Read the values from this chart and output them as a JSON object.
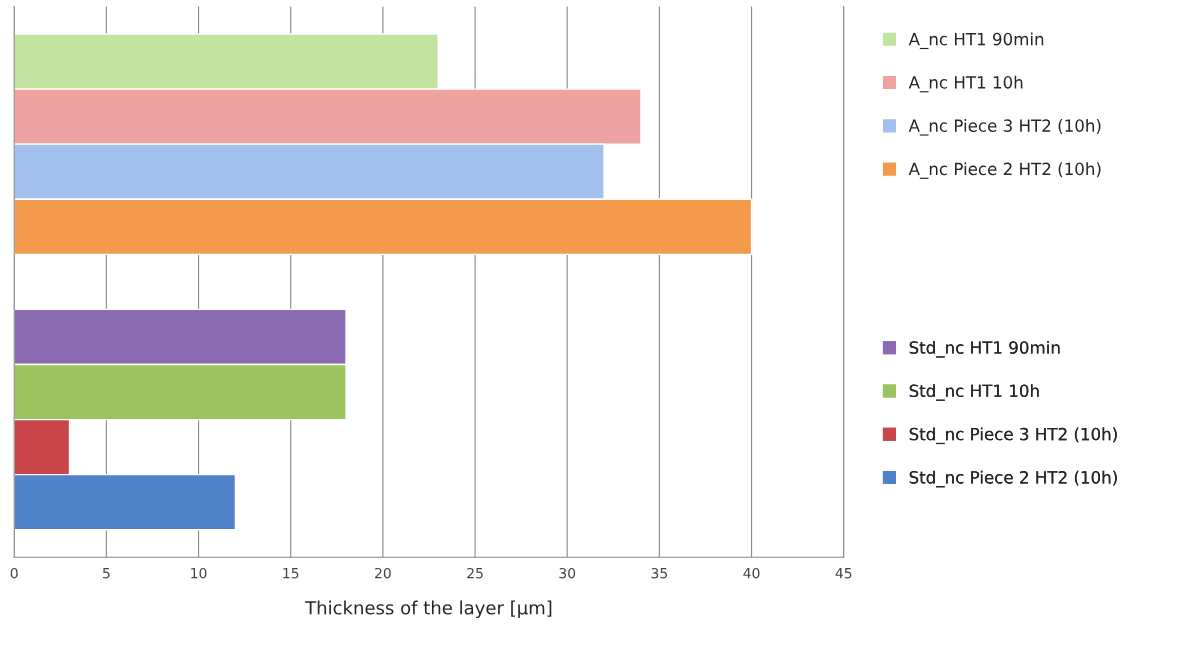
{
  "chart_data": {
    "type": "bar",
    "orientation": "horizontal",
    "xlabel": "Thickness of the layer [µm]",
    "categories": [
      null,
      null
    ],
    "series": [
      {
        "name": "A_nc HT1 90min",
        "color": "#c3e3a0",
        "values": [
          23,
          null
        ]
      },
      {
        "name": "A_nc HT1 10h",
        "color": "#eea3a2",
        "values": [
          34,
          null
        ]
      },
      {
        "name": "A_nc Piece 3 HT2 (10h)",
        "color": "#a3c0ee",
        "values": [
          32,
          null
        ]
      },
      {
        "name": "A_nc Piece 2 HT2 (10h)",
        "color": "#f39a4c",
        "values": [
          40,
          null
        ]
      },
      {
        "name": "Std_nc HT1 90min",
        "color": "#8c6bb3",
        "values": [
          null,
          18
        ]
      },
      {
        "name": "Std_nc HT1 10h",
        "color": "#9bc45e",
        "values": [
          null,
          18
        ]
      },
      {
        "name": "Std_nc Piece 3 HT2 (10h)",
        "color": "#c9474a",
        "values": [
          null,
          3
        ]
      },
      {
        "name": "Std_nc Piece 2 HT2 (10h)",
        "color": "#4f82c8",
        "values": [
          null,
          12
        ]
      }
    ],
    "xlim": [
      0,
      45
    ],
    "xticks": [
      0,
      5,
      10,
      15,
      20,
      25,
      30,
      35,
      40,
      45
    ],
    "grid": "x",
    "legend": "right"
  }
}
